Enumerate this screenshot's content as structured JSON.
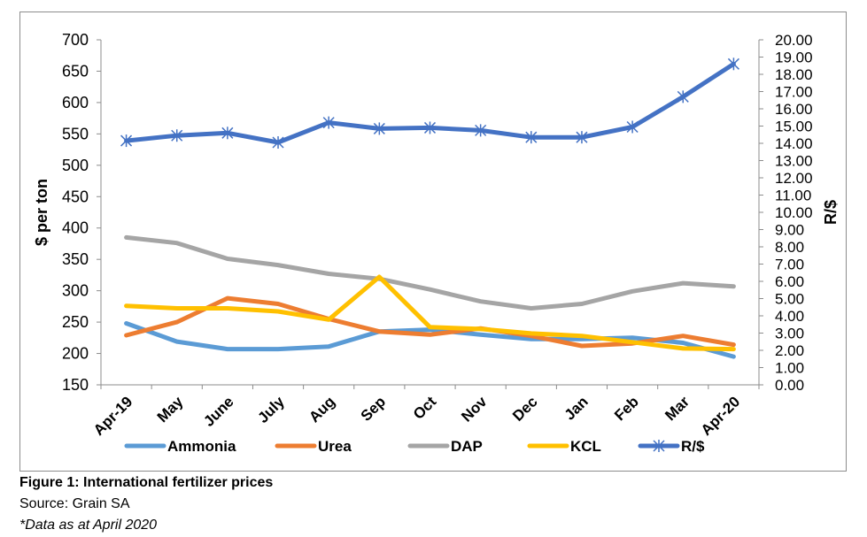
{
  "caption": {
    "title": "Figure 1: International fertilizer prices",
    "source": "Source: Grain SA",
    "note": "*Data as at April 2020"
  },
  "chart_data": {
    "type": "line",
    "categories": [
      "Apr-19",
      "May",
      "June",
      "July",
      "Aug",
      "Sep",
      "Oct",
      "Nov",
      "Dec",
      "Jan",
      "Feb",
      "Mar",
      "Apr-20"
    ],
    "ylabel": "$ per ton",
    "y2label": "R/$",
    "ylim": [
      150,
      700
    ],
    "y2lim": [
      0,
      20
    ],
    "yticks": [
      "150",
      "200",
      "250",
      "300",
      "350",
      "400",
      "450",
      "500",
      "550",
      "600",
      "650",
      "700"
    ],
    "y2ticks": [
      "0.00",
      "1.00",
      "2.00",
      "3.00",
      "4.00",
      "5.00",
      "6.00",
      "7.00",
      "8.00",
      "9.00",
      "10.00",
      "11.00",
      "12.00",
      "13.00",
      "14.00",
      "15.00",
      "16.00",
      "17.00",
      "18.00",
      "19.00",
      "20.00"
    ],
    "grid": false,
    "legend_position": "bottom",
    "series": [
      {
        "name": "Ammonia",
        "color": "#5B9BD5",
        "axis": "left",
        "marker": "none",
        "values": [
          248,
          219,
          207,
          207,
          211,
          235,
          238,
          230,
          223,
          223,
          225,
          217,
          195
        ]
      },
      {
        "name": "Urea",
        "color": "#ED7D31",
        "axis": "left",
        "marker": "none",
        "values": [
          229,
          250,
          288,
          279,
          255,
          235,
          230,
          240,
          228,
          212,
          216,
          228,
          214
        ]
      },
      {
        "name": "DAP",
        "color": "#A5A5A5",
        "axis": "left",
        "marker": "none",
        "values": [
          385,
          376,
          351,
          341,
          327,
          319,
          302,
          283,
          272,
          279,
          299,
          312,
          307
        ]
      },
      {
        "name": "KCL",
        "color": "#FFC000",
        "axis": "left",
        "marker": "none",
        "values": [
          276,
          272,
          272,
          267,
          254,
          322,
          242,
          239,
          232,
          228,
          218,
          208,
          207
        ]
      },
      {
        "name": "R/$",
        "color": "#4472C4",
        "axis": "right",
        "marker": "star",
        "values": [
          14.15,
          14.45,
          14.6,
          14.05,
          15.2,
          14.85,
          14.9,
          14.75,
          14.35,
          14.35,
          14.95,
          16.7,
          18.6
        ]
      }
    ]
  }
}
